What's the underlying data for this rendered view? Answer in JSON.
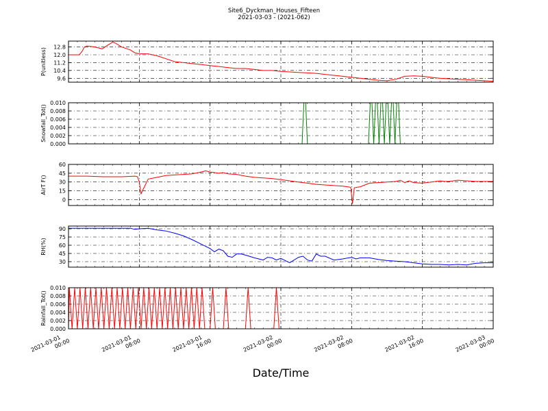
{
  "figure": {
    "title": "Site6_Dyckman_Houses_Fifteen",
    "subtitle": "2021-03-03 - (2021-062)",
    "xlabel": "Date/Time"
  },
  "chart_data": [
    {
      "type": "line",
      "ylabel": "P(unitless)",
      "ylim": [
        9.2,
        13.4
      ],
      "yticks": [
        9.6,
        10.4,
        11.2,
        12.0,
        12.8
      ],
      "ytick_labels": [
        "9.6",
        "10.4",
        "11.2",
        "12.0",
        "12.8"
      ],
      "xlim_hours": [
        0,
        48
      ],
      "grid": true,
      "series": [
        {
          "color": "#ff0000",
          "x": [
            0,
            1.2,
            1.5,
            1.8,
            2.1,
            3,
            3.8,
            4.3,
            5,
            5.3,
            6,
            7,
            7.5,
            8,
            9,
            10,
            11,
            12,
            13,
            14,
            15,
            16,
            17,
            18,
            19,
            20,
            21,
            22,
            23,
            24,
            25,
            26,
            27,
            28,
            29,
            30,
            31,
            32,
            33,
            34,
            35,
            36,
            37,
            38,
            39,
            40,
            41,
            42,
            43,
            44,
            45,
            46,
            47,
            48
          ],
          "y": [
            12.0,
            12.0,
            12.3,
            12.8,
            12.9,
            12.8,
            12.6,
            12.9,
            13.3,
            13.2,
            12.8,
            12.5,
            12.2,
            12.1,
            12.1,
            11.9,
            11.6,
            11.3,
            11.2,
            11.1,
            11.0,
            10.9,
            10.8,
            10.7,
            10.6,
            10.6,
            10.5,
            10.4,
            10.4,
            10.3,
            10.25,
            10.2,
            10.15,
            10.1,
            10.0,
            9.9,
            9.8,
            9.7,
            9.6,
            9.5,
            9.4,
            9.35,
            9.5,
            9.8,
            9.85,
            9.8,
            9.7,
            9.6,
            9.55,
            9.5,
            9.45,
            9.4,
            9.35,
            9.3
          ]
        }
      ]
    },
    {
      "type": "line",
      "ylabel": "Snowfall_Tot()",
      "ylim": [
        0,
        0.01
      ],
      "yticks": [
        0,
        0.002,
        0.004,
        0.006,
        0.008,
        0.01
      ],
      "ytick_labels": [
        "0.000",
        "0.002",
        "0.004",
        "0.006",
        "0.008",
        "0.010"
      ],
      "xlim_hours": [
        0,
        48
      ],
      "grid": true,
      "series": [
        {
          "color": "#008000",
          "x": [
            0,
            26.4,
            26.6,
            26.8,
            27.0,
            33.9,
            34.1,
            34.3,
            34.5,
            34.7,
            34.9,
            35.1,
            35.3,
            35.5,
            35.7,
            35.9,
            36.1,
            36.3,
            36.5,
            36.7,
            36.9,
            37.1,
            37.3,
            37.5,
            48
          ],
          "y": [
            0,
            0,
            0.01,
            0.01,
            0,
            0,
            0.01,
            0.01,
            0,
            0.01,
            0.01,
            0,
            0.01,
            0.01,
            0,
            0.01,
            0.01,
            0,
            0.01,
            0.01,
            0,
            0.01,
            0.01,
            0,
            0
          ]
        }
      ]
    },
    {
      "type": "line",
      "ylabel": "AirT F()",
      "ylim": [
        -10,
        60
      ],
      "yticks": [
        0,
        15,
        30,
        45,
        60
      ],
      "ytick_labels": [
        "0",
        "15",
        "30",
        "45",
        "60"
      ],
      "xlim_hours": [
        0,
        48
      ],
      "grid": true,
      "series": [
        {
          "color": "#ff0000",
          "x": [
            0,
            2,
            4,
            6,
            7.5,
            7.8,
            8,
            8.2,
            9,
            10,
            11,
            12,
            13,
            14,
            15,
            15.5,
            16,
            17,
            17.5,
            18,
            19,
            20,
            21,
            22,
            23,
            24,
            25,
            26,
            27,
            28,
            29,
            30,
            31,
            31.5,
            31.9,
            32.1,
            32.3,
            32.6,
            33,
            33.5,
            34,
            35,
            36,
            37,
            37.5,
            38,
            38.5,
            39,
            40,
            41,
            42,
            42.5,
            43,
            44,
            45,
            46,
            47,
            48
          ],
          "y": [
            40,
            40,
            39,
            39,
            40,
            39,
            30,
            10,
            35,
            38,
            41,
            42,
            43,
            44,
            47,
            49,
            47,
            45,
            46,
            44,
            43,
            40,
            38,
            37,
            36,
            34,
            32,
            30,
            28,
            26,
            25,
            24,
            23,
            22,
            21,
            -7,
            20,
            21,
            22,
            25,
            28,
            29,
            30,
            31,
            33,
            29,
            32,
            29,
            28,
            30,
            32,
            31,
            31,
            33,
            32,
            31,
            31,
            31
          ]
        }
      ]
    },
    {
      "type": "line",
      "ylabel": "RH(%)",
      "ylim": [
        20,
        95
      ],
      "yticks": [
        30,
        45,
        60,
        75,
        90
      ],
      "ytick_labels": [
        "30",
        "45",
        "60",
        "75",
        "90"
      ],
      "xlim_hours": [
        0,
        48
      ],
      "grid": true,
      "series": [
        {
          "color": "#0000ff",
          "x": [
            0,
            4,
            7,
            7.5,
            8,
            9,
            10,
            11,
            12,
            13,
            14,
            15,
            16,
            16.5,
            17,
            17.5,
            18,
            18.5,
            19,
            19.5,
            20,
            21,
            22,
            22.5,
            23,
            23.5,
            24,
            25,
            26,
            26.5,
            27,
            27.5,
            28,
            28.5,
            29,
            30,
            31,
            32,
            32.5,
            33,
            34,
            35,
            36,
            37,
            38,
            39,
            40,
            41,
            42,
            43,
            44,
            45,
            46,
            47,
            48
          ],
          "y": [
            91,
            91,
            91,
            89,
            90,
            91,
            88,
            86,
            82,
            77,
            70,
            62,
            54,
            48,
            53,
            50,
            40,
            38,
            44,
            44,
            42,
            37,
            33,
            38,
            37,
            33,
            36,
            28,
            38,
            40,
            33,
            31,
            44,
            40,
            40,
            33,
            35,
            38,
            35,
            37,
            37,
            34,
            32,
            31,
            30,
            28,
            26,
            25,
            25,
            24,
            25,
            24,
            27,
            28,
            28
          ]
        }
      ]
    },
    {
      "type": "line",
      "ylabel": "Rainfall_Tot()",
      "ylim": [
        0,
        0.01
      ],
      "yticks": [
        0,
        0.002,
        0.004,
        0.006,
        0.008,
        0.01
      ],
      "ytick_labels": [
        "0.000",
        "0.002",
        "0.004",
        "0.006",
        "0.008",
        "0.010"
      ],
      "xlim_hours": [
        0,
        48
      ],
      "grid": true,
      "series": [
        {
          "color": "#ff0000",
          "x": [
            0,
            0.1,
            0.4,
            0.7,
            1.0,
            1.3,
            1.6,
            1.9,
            2.2,
            2.5,
            2.8,
            3.1,
            3.4,
            3.7,
            4.0,
            4.3,
            4.6,
            4.9,
            5.2,
            5.5,
            5.8,
            6.1,
            6.4,
            6.7,
            7.0,
            7.3,
            7.6,
            7.9,
            8.2,
            8.5,
            8.8,
            9.1,
            9.4,
            9.7,
            10.0,
            10.3,
            10.6,
            10.9,
            11.2,
            11.5,
            11.8,
            12.1,
            12.4,
            12.7,
            13.0,
            13.3,
            13.6,
            13.9,
            14.2,
            14.5,
            14.8,
            15.1,
            15.4,
            16.0,
            16.3,
            16.6,
            17.5,
            17.8,
            18.1,
            20.0,
            20.3,
            20.6,
            23.2,
            23.5,
            23.8,
            48
          ],
          "y": [
            0,
            0.01,
            0,
            0.01,
            0,
            0.01,
            0,
            0.01,
            0,
            0.01,
            0,
            0.01,
            0,
            0.01,
            0,
            0.01,
            0,
            0.01,
            0,
            0.01,
            0,
            0.01,
            0,
            0.01,
            0,
            0.01,
            0,
            0.01,
            0,
            0.01,
            0,
            0.01,
            0,
            0.01,
            0,
            0.01,
            0,
            0.01,
            0,
            0.01,
            0,
            0.01,
            0,
            0.01,
            0,
            0.01,
            0,
            0.01,
            0,
            0.01,
            0,
            0.01,
            0,
            0,
            0.01,
            0,
            0,
            0.01,
            0,
            0,
            0.01,
            0,
            0,
            0.01,
            0,
            0
          ]
        }
      ]
    }
  ],
  "x_axis": {
    "ticks_hours": [
      0,
      8,
      16,
      24,
      32,
      40,
      48
    ],
    "tick_labels": [
      [
        "2021-03-01",
        "00:00"
      ],
      [
        "2021-03-01",
        "08:00"
      ],
      [
        "2021-03-01",
        "16:00"
      ],
      [
        "2021-03-02",
        "00:00"
      ],
      [
        "2021-03-02",
        "08:00"
      ],
      [
        "2021-03-02",
        "16:00"
      ],
      [
        "2021-03-03",
        "00:00"
      ]
    ]
  }
}
